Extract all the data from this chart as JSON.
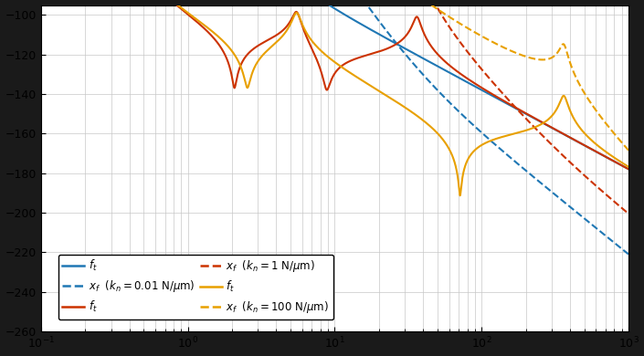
{
  "colors": [
    "#1f77b4",
    "#cc3300",
    "#e8a000"
  ],
  "kn_labels": [
    "0.01",
    "1",
    "100"
  ],
  "kn_values_N_per_m": [
    10000.0,
    1000000.0,
    100000000.0
  ],
  "freq_min": 0.1,
  "freq_max": 1000.0,
  "ylim": [
    -260,
    -95
  ],
  "yticks": [
    -260,
    -240,
    -220,
    -200,
    -180,
    -160,
    -140,
    -120,
    -100
  ],
  "background_outer": "#1a1a1a",
  "background_inner": "#ffffff",
  "grid_color": "#c8c8c8",
  "linewidth_solid": 1.5,
  "linewidth_dashed": 1.5,
  "legend_fontsize": 8.5
}
